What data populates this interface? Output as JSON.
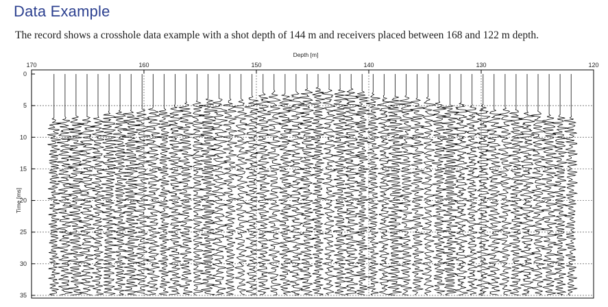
{
  "header": {
    "title": "Data Example",
    "caption": "The record shows a crosshole data example with a shot depth of 144 m and receivers placed between 168 and 122 m depth."
  },
  "chart_data": {
    "type": "line",
    "title": "",
    "xlabel": "Depth [m]",
    "ylabel": "Time [ms]",
    "xlim": [
      170,
      120
    ],
    "ylim": [
      0,
      35
    ],
    "x_ticks": [
      "170",
      "160",
      "150",
      "140",
      "130",
      "120"
    ],
    "y_ticks": [
      "0",
      "5",
      "10",
      "15",
      "20",
      "25",
      "30",
      "35"
    ],
    "grid": "dotted",
    "shot_depth_m": 144,
    "receiver_range_m": [
      168,
      122
    ],
    "trace_count": 48,
    "wiggle_color": "#000000"
  }
}
